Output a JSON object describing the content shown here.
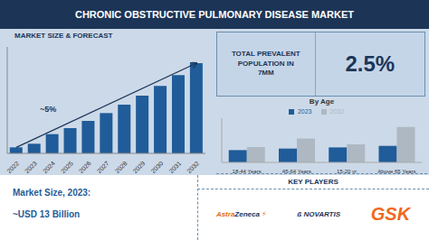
{
  "title": "CHRONIC OBSTRUCTIVE PULMONARY DISEASE MARKET",
  "chart_data": [
    {
      "type": "bar",
      "title": "MARKET SIZE & FORECAST",
      "categories": [
        "2022",
        "2023",
        "2024",
        "2025",
        "2026",
        "2027",
        "2028",
        "2029",
        "2030",
        "2031",
        "2032"
      ],
      "values": [
        1.0,
        1.6,
        3.2,
        4.2,
        5.4,
        6.7,
        8.1,
        9.6,
        11.2,
        13.0,
        15.0
      ],
      "color": "#1f5c99",
      "ylim": [
        0,
        17.7
      ],
      "tick_labels": "x",
      "grid": false,
      "annotations": [
        "~5%"
      ]
    },
    {
      "type": "bar",
      "title": "By Age",
      "categories": [
        "18-44 Years",
        "45-64 Years",
        "15-20 yr",
        "Above 65 Years"
      ],
      "series": [
        {
          "name": "2023",
          "color": "#1f5c99",
          "values": [
            3.2,
            3.6,
            3.9,
            4.3
          ]
        },
        {
          "name": "2032",
          "color": "#adb8c2",
          "values": [
            4.0,
            6.2,
            4.7,
            9.2
          ]
        }
      ],
      "ylim": [
        0,
        11.5
      ],
      "tick_labels": "x",
      "grid": false,
      "legend": "top"
    }
  ],
  "annotations": [
    "TOTAL PREVALENT\nPOPULATION IN\n7MM",
    "2.5%",
    "Market Size, 2023:",
    "~USD 13 Billion",
    "KEY PLAYERS",
    "Astra",
    "Zeneca",
    "⚡",
    "ß NOVARTIS",
    "GSK"
  ]
}
